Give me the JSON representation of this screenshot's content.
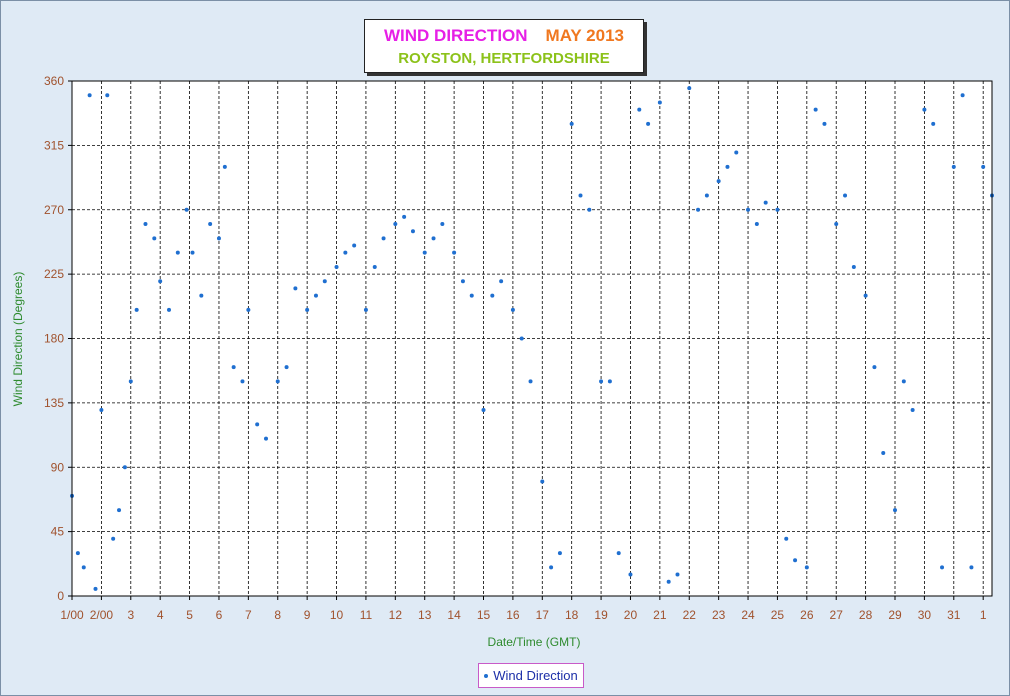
{
  "colors": {
    "background": "#dfeaf5",
    "plot_bg": "#ffffff",
    "points": "#1f6fd0",
    "title_main": "#e620e6",
    "title_month": "#f07820",
    "subtitle": "#8cc21a",
    "tick_labels": "#a0522d",
    "axis_titles": "#2e8b2e",
    "legend_text": "#1c2fa8"
  },
  "chart_data": {
    "type": "scatter",
    "title": "WIND DIRECTION",
    "title_month": "MAY 2013",
    "subtitle": "ROYSTON, HERTFORDSHIRE",
    "xlabel": "Date/Time (GMT)",
    "ylabel": "Wind Direction (Degrees)",
    "ylim": [
      0,
      360
    ],
    "yticks": [
      0,
      45,
      90,
      135,
      180,
      225,
      270,
      315,
      360
    ],
    "xlim_days": [
      1,
      32.3
    ],
    "xticks": [
      {
        "day": 1,
        "label": "1/00"
      },
      {
        "day": 2,
        "label": "2/00"
      },
      {
        "day": 3,
        "label": "3"
      },
      {
        "day": 4,
        "label": "4"
      },
      {
        "day": 5,
        "label": "5"
      },
      {
        "day": 6,
        "label": "6"
      },
      {
        "day": 7,
        "label": "7"
      },
      {
        "day": 8,
        "label": "8"
      },
      {
        "day": 9,
        "label": "9"
      },
      {
        "day": 10,
        "label": "10"
      },
      {
        "day": 11,
        "label": "11"
      },
      {
        "day": 12,
        "label": "12"
      },
      {
        "day": 13,
        "label": "13"
      },
      {
        "day": 14,
        "label": "14"
      },
      {
        "day": 15,
        "label": "15"
      },
      {
        "day": 16,
        "label": "16"
      },
      {
        "day": 17,
        "label": "17"
      },
      {
        "day": 18,
        "label": "18"
      },
      {
        "day": 19,
        "label": "19"
      },
      {
        "day": 20,
        "label": "20"
      },
      {
        "day": 21,
        "label": "21"
      },
      {
        "day": 22,
        "label": "22"
      },
      {
        "day": 23,
        "label": "23"
      },
      {
        "day": 24,
        "label": "24"
      },
      {
        "day": 25,
        "label": "25"
      },
      {
        "day": 26,
        "label": "26"
      },
      {
        "day": 27,
        "label": "27"
      },
      {
        "day": 28,
        "label": "28"
      },
      {
        "day": 29,
        "label": "29"
      },
      {
        "day": 30,
        "label": "30"
      },
      {
        "day": 31,
        "label": "31"
      },
      {
        "day": 32,
        "label": "1"
      }
    ],
    "grid": true,
    "legend": {
      "position": "bottom-center",
      "entries": [
        "Wind Direction"
      ]
    },
    "series": [
      {
        "name": "Wind Direction",
        "x": [
          1.0,
          1.2,
          1.4,
          1.6,
          1.8,
          2.0,
          2.2,
          2.4,
          2.6,
          2.8,
          3.0,
          3.2,
          3.5,
          3.8,
          4.0,
          4.3,
          4.6,
          4.9,
          5.1,
          5.4,
          5.7,
          6.0,
          6.2,
          6.5,
          6.8,
          7.0,
          7.3,
          7.6,
          8.0,
          8.3,
          8.6,
          9.0,
          9.3,
          9.6,
          10.0,
          10.3,
          10.6,
          11.0,
          11.3,
          11.6,
          12.0,
          12.3,
          12.6,
          13.0,
          13.3,
          13.6,
          14.0,
          14.3,
          14.6,
          15.0,
          15.3,
          15.6,
          16.0,
          16.3,
          16.6,
          17.0,
          17.3,
          17.6,
          18.0,
          18.3,
          18.6,
          19.0,
          19.3,
          19.6,
          20.0,
          20.3,
          20.6,
          21.0,
          21.3,
          21.6,
          22.0,
          22.3,
          22.6,
          23.0,
          23.3,
          23.6,
          24.0,
          24.3,
          24.6,
          25.0,
          25.3,
          25.6,
          26.0,
          26.3,
          26.6,
          27.0,
          27.3,
          27.6,
          28.0,
          28.3,
          28.6,
          29.0,
          29.3,
          29.6,
          30.0,
          30.3,
          30.6,
          31.0,
          31.3,
          31.6,
          32.0,
          32.3
        ],
        "y": [
          70,
          30,
          20,
          350,
          5,
          130,
          350,
          40,
          60,
          90,
          150,
          200,
          260,
          250,
          220,
          200,
          240,
          270,
          240,
          210,
          260,
          250,
          300,
          160,
          150,
          200,
          120,
          110,
          150,
          160,
          215,
          200,
          210,
          220,
          230,
          240,
          245,
          200,
          230,
          250,
          260,
          265,
          255,
          240,
          250,
          260,
          240,
          220,
          210,
          130,
          210,
          220,
          200,
          180,
          150,
          80,
          20,
          30,
          330,
          280,
          270,
          150,
          150,
          30,
          15,
          340,
          330,
          345,
          10,
          15,
          355,
          270,
          280,
          290,
          300,
          310,
          270,
          260,
          275,
          270,
          40,
          25,
          20,
          340,
          330,
          260,
          280,
          230,
          210,
          160,
          100,
          60,
          150,
          130,
          340,
          330,
          20,
          300,
          350,
          20,
          300,
          280
        ]
      }
    ]
  }
}
